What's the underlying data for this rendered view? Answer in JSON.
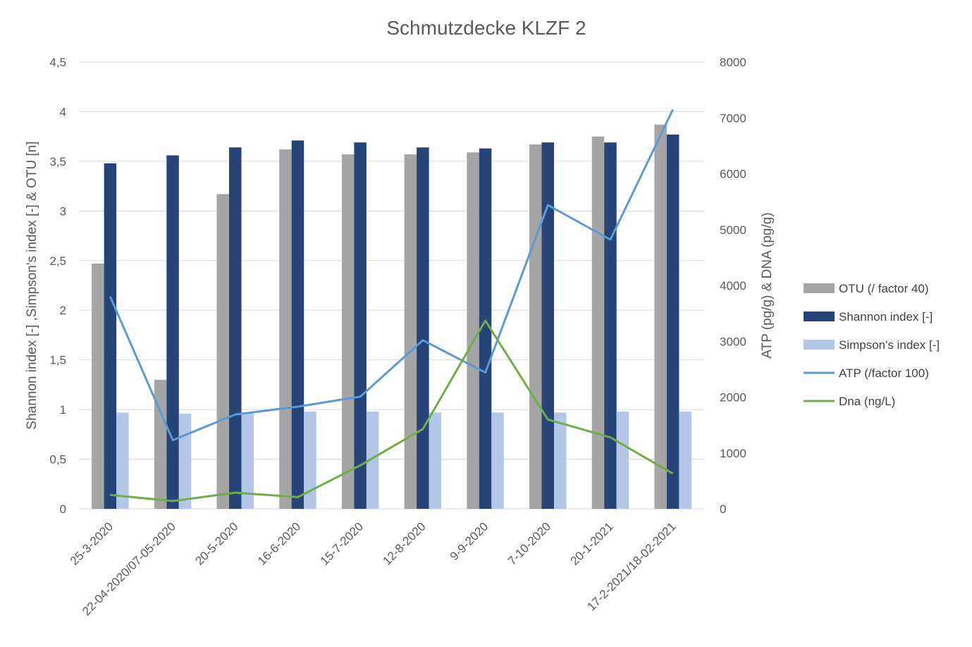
{
  "chart_data": {
    "type": "bar",
    "title": "Schmutzdecke KLZF 2",
    "ylabel": "Shannon index [-] ,Simpson's index [-] & OTU [n]",
    "y2label": "ATP (pg/g) & DNA (pg/g)",
    "xlabel": "",
    "ylim": [
      0,
      4.5
    ],
    "y2lim": [
      0,
      8000
    ],
    "yticks": [
      "0",
      "0,5",
      "1",
      "1,5",
      "2",
      "2,5",
      "3",
      "3,5",
      "4",
      "4,5"
    ],
    "y2ticks": [
      "0",
      "1000",
      "2000",
      "3000",
      "4000",
      "5000",
      "6000",
      "7000",
      "8000"
    ],
    "grid": true,
    "legend_position": "right",
    "categories": [
      "25-3-2020",
      "22-04-2020/07-05-2020",
      "20-5-2020",
      "16-6-2020",
      "15-7-2020",
      "12-8-2020",
      "9-9-2020",
      "7-10-2020",
      "20-1-2021",
      "17-2-2021/18-02-2021"
    ],
    "series": [
      {
        "name": "OTU (/ factor 40)",
        "kind": "bar",
        "axis": "left",
        "color": "#a5a5a5",
        "values": [
          2.47,
          1.3,
          3.17,
          3.62,
          3.57,
          3.57,
          3.59,
          3.67,
          3.75,
          3.87
        ]
      },
      {
        "name": "Shannon index [-]",
        "kind": "bar",
        "axis": "left",
        "color": "#264478",
        "values": [
          3.48,
          3.56,
          3.64,
          3.71,
          3.69,
          3.64,
          3.63,
          3.69,
          3.69,
          3.77
        ]
      },
      {
        "name": "Simpson's index [-]",
        "kind": "bar",
        "axis": "left",
        "color": "#b4c7e7",
        "values": [
          0.97,
          0.96,
          0.97,
          0.98,
          0.98,
          0.97,
          0.97,
          0.97,
          0.98,
          0.98
        ]
      },
      {
        "name": "ATP (/factor 100)",
        "kind": "line",
        "axis": "right",
        "color": "#5b9bd5",
        "values": [
          3800,
          1230,
          1690,
          1830,
          2010,
          3020,
          2440,
          5440,
          4820,
          7150
        ]
      },
      {
        "name": "Dna (ng/L)",
        "kind": "line",
        "axis": "right",
        "color": "#70ad47",
        "values": [
          250,
          140,
          290,
          210,
          780,
          1430,
          3370,
          1600,
          1280,
          630
        ]
      }
    ]
  }
}
